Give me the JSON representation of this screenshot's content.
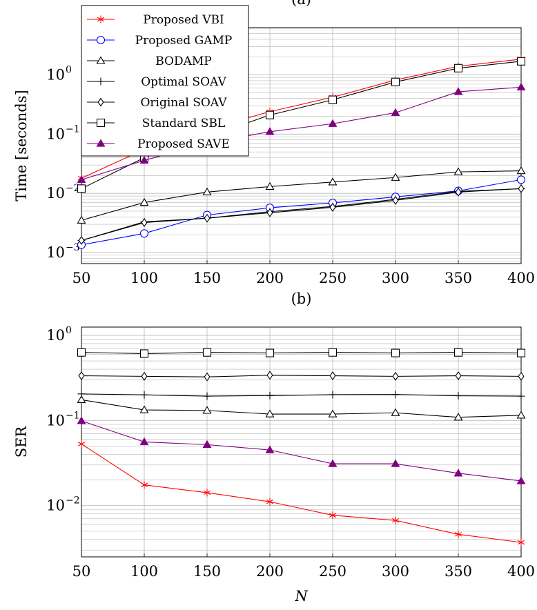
{
  "colors": {
    "vbi": "#ff0000",
    "gamp": "#0000ff",
    "save": "#800080",
    "black": "#000000",
    "grid": "#b8b8b8"
  },
  "legend": [
    {
      "key": "vbi",
      "label": "Proposed VBI",
      "marker": "star-icon"
    },
    {
      "key": "gamp",
      "label": "Proposed GAMP",
      "marker": "circle-icon"
    },
    {
      "key": "bodamp",
      "label": "BODAMP",
      "marker": "triangle-icon"
    },
    {
      "key": "osoav",
      "label": "Optimal SOAV",
      "marker": "plus-icon"
    },
    {
      "key": "orsoav",
      "label": "Original SOAV",
      "marker": "diamond-icon"
    },
    {
      "key": "sbl",
      "label": "Standard SBL",
      "marker": "square-icon"
    },
    {
      "key": "save",
      "label": "Proposed SAVE",
      "marker": "filled-triangle-icon"
    }
  ],
  "chart_data": [
    {
      "type": "line",
      "title": "(a)",
      "xlabel": "",
      "ylabel": "Time [seconds]",
      "yscale": "log",
      "xlim": [
        50,
        400
      ],
      "ylim": [
        0.00065,
        6.3
      ],
      "grid": true,
      "legend_position": "top-left",
      "x": [
        50,
        100,
        150,
        200,
        250,
        300,
        350,
        400
      ],
      "xticks": [
        "50",
        "100",
        "150",
        "200",
        "250",
        "300",
        "350",
        "400"
      ],
      "yticks": [
        {
          "value": 0.001,
          "base": "10",
          "exp": "−3"
        },
        {
          "value": 0.01,
          "base": "10",
          "exp": "−2"
        },
        {
          "value": 0.1,
          "base": "10",
          "exp": "−1"
        },
        {
          "value": 1,
          "base": "10",
          "exp": "0"
        }
      ],
      "series": [
        {
          "key": "vbi",
          "name": "Proposed VBI",
          "values": [
            0.018,
            0.055,
            0.12,
            0.24,
            0.42,
            0.82,
            1.4,
            1.85
          ]
        },
        {
          "key": "gamp",
          "name": "Proposed GAMP",
          "values": [
            0.00135,
            0.0021,
            0.0043,
            0.0057,
            0.0069,
            0.0087,
            0.011,
            0.017
          ]
        },
        {
          "key": "bodamp",
          "name": "BODAMP",
          "values": [
            0.0035,
            0.007,
            0.0105,
            0.013,
            0.0155,
            0.0185,
            0.023,
            0.024
          ]
        },
        {
          "key": "osoav",
          "name": "Optimal SOAV",
          "values": [
            0.0016,
            0.0033,
            0.0038,
            0.0049,
            0.006,
            0.0079,
            0.0108,
            0.012
          ]
        },
        {
          "key": "orsoav",
          "name": "Original SOAV",
          "values": [
            0.0016,
            0.0032,
            0.0038,
            0.0047,
            0.0058,
            0.0076,
            0.0105,
            0.012
          ]
        },
        {
          "key": "sbl",
          "name": "Standard SBL",
          "values": [
            0.012,
            0.04,
            0.09,
            0.21,
            0.38,
            0.76,
            1.3,
            1.7
          ]
        },
        {
          "key": "save",
          "name": "Proposed SAVE",
          "values": [
            0.017,
            0.036,
            0.07,
            0.11,
            0.15,
            0.23,
            0.52,
            0.62
          ]
        }
      ]
    },
    {
      "type": "line",
      "title": "(b)",
      "xlabel": "N",
      "ylabel": "SER",
      "yscale": "log",
      "xlim": [
        50,
        400
      ],
      "ylim": [
        0.0025,
        1.25
      ],
      "grid": true,
      "x": [
        50,
        100,
        150,
        200,
        250,
        300,
        350,
        400
      ],
      "xticks": [
        "50",
        "100",
        "150",
        "200",
        "250",
        "300",
        "350",
        "400"
      ],
      "yticks": [
        {
          "value": 0.01,
          "base": "10",
          "exp": "−2"
        },
        {
          "value": 0.1,
          "base": "10",
          "exp": "−1"
        },
        {
          "value": 1,
          "base": "10",
          "exp": "0"
        }
      ],
      "series": [
        {
          "key": "vbi",
          "name": "Proposed VBI",
          "values": [
            0.053,
            0.0175,
            0.0142,
            0.0111,
            0.0077,
            0.0067,
            0.0046,
            0.0037
          ]
        },
        {
          "key": "bodamp",
          "name": "BODAMP",
          "values": [
            0.175,
            0.133,
            0.131,
            0.119,
            0.119,
            0.123,
            0.109,
            0.115
          ]
        },
        {
          "key": "osoav",
          "name": "Optimal SOAV",
          "values": [
            0.205,
            0.2,
            0.193,
            0.196,
            0.201,
            0.202,
            0.195,
            0.193
          ]
        },
        {
          "key": "orsoav",
          "name": "Original SOAV",
          "values": [
            0.335,
            0.33,
            0.325,
            0.34,
            0.335,
            0.33,
            0.335,
            0.33
          ]
        },
        {
          "key": "sbl",
          "name": "Standard SBL",
          "values": [
            0.63,
            0.61,
            0.63,
            0.62,
            0.63,
            0.62,
            0.63,
            0.62
          ]
        },
        {
          "key": "save",
          "name": "Proposed SAVE",
          "values": [
            0.099,
            0.056,
            0.052,
            0.045,
            0.031,
            0.031,
            0.024,
            0.0195
          ]
        }
      ]
    }
  ]
}
